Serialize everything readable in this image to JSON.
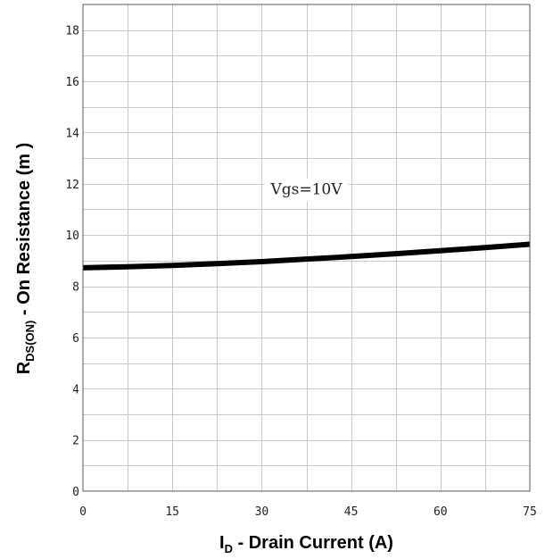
{
  "chart_data": {
    "type": "line",
    "title": "",
    "xlabel": {
      "main": "I",
      "sub": "D",
      "rest": " - Drain Current (A)"
    },
    "ylabel": {
      "main": "R",
      "sub": "DS(ON)",
      "rest": " - On Resistance (m   )"
    },
    "xlim": [
      0,
      75
    ],
    "ylim": [
      0,
      19
    ],
    "x_ticks": [
      0,
      15,
      30,
      45,
      60,
      75
    ],
    "y_ticks": [
      0,
      2,
      4,
      6,
      8,
      10,
      12,
      14,
      16,
      18
    ],
    "x_minor_step": 7.5,
    "y_minor_step": 1,
    "grid": true,
    "line_color": "#000000",
    "grid_color": "#c8c8c8",
    "annotation": {
      "text": "Vgs=10V",
      "x": 37.5,
      "y": 11.8
    },
    "series": [
      {
        "x": [
          0,
          7.5,
          15,
          22.5,
          30,
          37.5,
          45,
          52.5,
          60,
          67.5,
          75
        ],
        "y": [
          8.72,
          8.76,
          8.81,
          8.88,
          8.96,
          9.06,
          9.16,
          9.27,
          9.39,
          9.51,
          9.64
        ]
      }
    ]
  }
}
